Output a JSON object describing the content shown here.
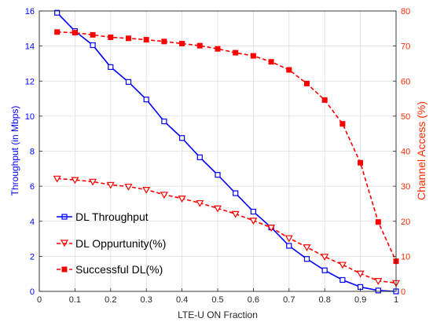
{
  "chart_data": {
    "type": "line",
    "xlabel": "LTE-U ON Fraction",
    "ylabel_left": "Throughput (in Mbps)",
    "ylabel_right": "Channel Access (%)",
    "xlim": [
      0,
      1
    ],
    "ylim_left": [
      0,
      16
    ],
    "ylim_right": [
      0,
      80
    ],
    "x_ticks": [
      "0",
      "0.1",
      "0.2",
      "0.3",
      "0.4",
      "0.5",
      "0.6",
      "0.7",
      "0.8",
      "0.9",
      "1"
    ],
    "y_left_ticks": [
      "0",
      "2",
      "4",
      "6",
      "8",
      "10",
      "12",
      "14",
      "16"
    ],
    "y_right_ticks": [
      "0",
      "10",
      "20",
      "30",
      "40",
      "50",
      "60",
      "70",
      "80"
    ],
    "grid": true,
    "legend_position": "bottom-left",
    "colors": {
      "left_axis": "#0000ff",
      "right_axis": "#ff2a00",
      "series_throughput": "#0000ff",
      "series_red": "#ff0000"
    },
    "x": [
      0.05,
      0.1,
      0.15,
      0.2,
      0.25,
      0.3,
      0.35,
      0.4,
      0.45,
      0.5,
      0.55,
      0.6,
      0.65,
      0.7,
      0.75,
      0.8,
      0.85,
      0.9,
      0.95,
      1.0
    ],
    "series": [
      {
        "name": "DL Throughput",
        "axis": "left",
        "style": "solid",
        "marker": "square",
        "color": "#0000ff",
        "values": [
          15.9,
          14.85,
          14.05,
          12.8,
          11.95,
          10.95,
          9.7,
          8.75,
          7.65,
          6.65,
          5.6,
          4.55,
          3.65,
          2.6,
          1.85,
          1.2,
          0.65,
          0.25,
          0.05,
          0.0
        ]
      },
      {
        "name": "DL Oppurtunity(%)",
        "axis": "right",
        "style": "dashed",
        "marker": "triangle-down",
        "color": "#ff0000",
        "values": [
          32.2,
          31.8,
          31.3,
          30.4,
          29.9,
          29.0,
          27.6,
          26.5,
          25.2,
          23.7,
          22.1,
          20.2,
          18.2,
          15.2,
          12.6,
          9.9,
          7.6,
          5.1,
          3.0,
          2.4
        ]
      },
      {
        "name": "Successful DL(%)",
        "axis": "right",
        "style": "dashed",
        "marker": "square-filled",
        "color": "#ff0000",
        "values": [
          74.0,
          73.8,
          73.2,
          72.5,
          72.2,
          71.8,
          71.3,
          70.7,
          70.1,
          69.2,
          68.1,
          67.2,
          65.5,
          63.2,
          59.3,
          54.6,
          47.8,
          36.7,
          19.8,
          8.6
        ]
      }
    ]
  }
}
